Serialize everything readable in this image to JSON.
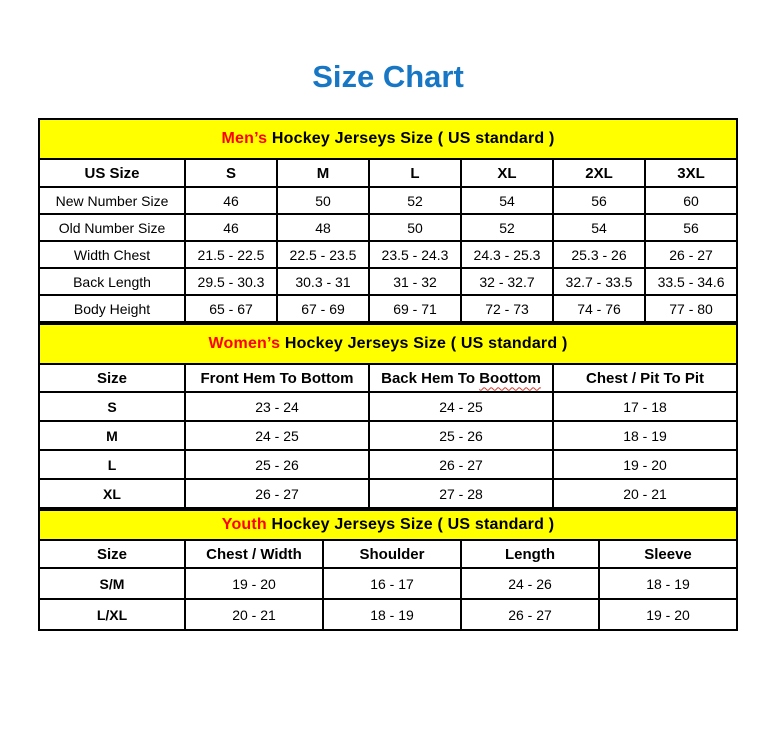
{
  "title": "Size Chart",
  "colors": {
    "title_blue": "#1777C4",
    "band_yellow": "#FFFF00",
    "accent_red": "#FF0000",
    "border_black": "#000000"
  },
  "chart_data": [
    {
      "type": "table",
      "id": "mens",
      "title_highlight": "Men’s",
      "title_rest": "Hockey Jerseys Size ( US standard )",
      "columns": [
        "US Size",
        "S",
        "M",
        "L",
        "XL",
        "2XL",
        "3XL"
      ],
      "rows": [
        [
          "New Number Size",
          "46",
          "50",
          "52",
          "54",
          "56",
          "60"
        ],
        [
          "Old Number Size",
          "46",
          "48",
          "50",
          "52",
          "54",
          "56"
        ],
        [
          "Width Chest",
          "21.5 - 22.5",
          "22.5 - 23.5",
          "23.5 - 24.3",
          "24.3 - 25.3",
          "25.3 - 26",
          "26 - 27"
        ],
        [
          "Back Length",
          "29.5 - 30.3",
          "30.3 - 31",
          "31 - 32",
          "32 - 32.7",
          "32.7 - 33.5",
          "33.5 - 34.6"
        ],
        [
          "Body Height",
          "65 - 67",
          "67 - 69",
          "69 - 71",
          "72 - 73",
          "74 - 76",
          "77 - 80"
        ]
      ]
    },
    {
      "type": "table",
      "id": "womens",
      "title_highlight": "Women’s",
      "title_rest": "Hockey Jerseys Size ( US standard )",
      "columns": [
        "Size",
        "Front Hem To Bottom",
        "Back Hem To Boottom",
        "Chest / Pit To Pit"
      ],
      "misspelled_word": "Boottom",
      "rows": [
        [
          "S",
          "23 - 24",
          "24 - 25",
          "17 - 18"
        ],
        [
          "M",
          "24 - 25",
          "25 - 26",
          "18 - 19"
        ],
        [
          "L",
          "25 - 26",
          "26 - 27",
          "19 - 20"
        ],
        [
          "XL",
          "26 - 27",
          "27 - 28",
          "20 - 21"
        ]
      ]
    },
    {
      "type": "table",
      "id": "youth",
      "title_highlight": "Youth",
      "title_rest": "Hockey Jerseys Size ( US standard )",
      "columns": [
        "Size",
        "Chest / Width",
        "Shoulder",
        "Length",
        "Sleeve"
      ],
      "rows": [
        [
          "S/M",
          "19 - 20",
          "16 - 17",
          "24 - 26",
          "18 - 19"
        ],
        [
          "L/XL",
          "20 - 21",
          "18 - 19",
          "26 - 27",
          "19 - 20"
        ]
      ]
    }
  ]
}
